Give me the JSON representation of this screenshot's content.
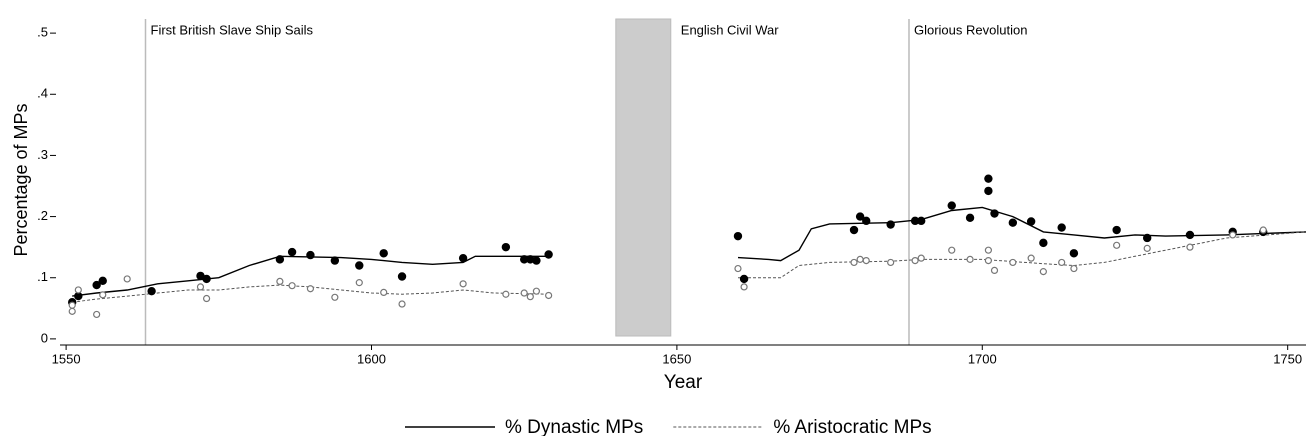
{
  "chart_data": {
    "type": "line",
    "x_label": "Year",
    "y_label": "Percentage of MPs",
    "xlim": [
      1549,
      1753
    ],
    "ylim": [
      -0.01,
      0.51
    ],
    "xticks": [
      1550,
      1600,
      1650,
      1700,
      1750
    ],
    "yticks": [
      0,
      {
        "value": 0.1,
        "label": ".1"
      },
      {
        "value": 0.2,
        "label": ".2"
      },
      {
        "value": 0.3,
        "label": ".3"
      },
      {
        "value": 0.4,
        "label": ".4"
      },
      {
        "value": 0.5,
        "label": ".5"
      }
    ],
    "annotations": [
      {
        "type": "vline",
        "x": 1563,
        "text": "First British Slave Ship Sails"
      },
      {
        "type": "span",
        "x": [
          1640,
          1649
        ],
        "text": "English Civil War",
        "color": "#cccccc"
      },
      {
        "type": "vline",
        "x": 1688,
        "text": "Glorious Revolution"
      }
    ],
    "legend": "bottom",
    "series": [
      {
        "name": "% Dynastic MPs",
        "color": "#000000",
        "dash": "solid",
        "x": [
          1551,
          1555,
          1560,
          1565,
          1570,
          1575,
          1580,
          1585,
          1590,
          1595,
          1600,
          1605,
          1610,
          1615,
          1617,
          1620,
          1629,
          null,
          1660,
          1665,
          1667,
          1670,
          1672,
          1675,
          1685,
          1690,
          1695,
          1700,
          1705,
          1710,
          1715,
          1720,
          1725,
          1730,
          1740,
          1753
        ],
        "values": [
          0.07,
          0.075,
          0.08,
          0.09,
          0.095,
          0.1,
          0.12,
          0.135,
          0.134,
          0.133,
          0.13,
          0.125,
          0.122,
          0.125,
          0.135,
          0.135,
          0.135,
          null,
          0.133,
          0.13,
          0.128,
          0.145,
          0.18,
          0.188,
          0.19,
          0.195,
          0.21,
          0.215,
          0.2,
          0.175,
          0.17,
          0.165,
          0.17,
          0.168,
          0.17,
          0.175
        ]
      },
      {
        "name": "% Aristocratic MPs",
        "color": "#555555",
        "dash": "dashed",
        "x": [
          1551,
          1555,
          1560,
          1565,
          1570,
          1575,
          1580,
          1585,
          1590,
          1595,
          1600,
          1605,
          1610,
          1615,
          1620,
          1629,
          null,
          1660,
          1667,
          1670,
          1675,
          1685,
          1690,
          1700,
          1710,
          1715,
          1720,
          1725,
          1730,
          1740,
          1753
        ],
        "values": [
          0.06,
          0.065,
          0.07,
          0.075,
          0.08,
          0.08,
          0.085,
          0.088,
          0.085,
          0.08,
          0.075,
          0.073,
          0.075,
          0.08,
          0.075,
          0.073,
          null,
          0.1,
          0.1,
          0.12,
          0.125,
          0.127,
          0.13,
          0.13,
          0.123,
          0.12,
          0.125,
          0.135,
          0.145,
          0.165,
          0.175
        ]
      }
    ],
    "points": [
      {
        "marker": "filled",
        "color": "#000000",
        "x": [
          1551,
          1552,
          1555,
          1556,
          1564,
          1572,
          1573,
          1585,
          1587,
          1590,
          1594,
          1598,
          1602,
          1605,
          1615,
          1622,
          1625,
          1626,
          1627,
          1629,
          1660,
          1661,
          1679,
          1680,
          1681,
          1685,
          1689,
          1690,
          1695,
          1698,
          1701,
          1701,
          1702,
          1705,
          1708,
          1710,
          1713,
          1715,
          1722,
          1727,
          1734,
          1741,
          1746
        ],
        "values": [
          0.06,
          0.07,
          0.088,
          0.095,
          0.078,
          0.103,
          0.098,
          0.13,
          0.142,
          0.137,
          0.128,
          0.12,
          0.14,
          0.102,
          0.132,
          0.15,
          0.13,
          0.13,
          0.128,
          0.138,
          0.168,
          0.098,
          0.178,
          0.2,
          0.193,
          0.187,
          0.193,
          0.193,
          0.218,
          0.198,
          0.262,
          0.242,
          0.205,
          0.19,
          0.192,
          0.157,
          0.182,
          0.14,
          0.178,
          0.165,
          0.17,
          0.175,
          0.175
        ]
      },
      {
        "marker": "hollow",
        "color": "#777777",
        "x": [
          1551,
          1551,
          1552,
          1555,
          1556,
          1560,
          1572,
          1573,
          1585,
          1587,
          1590,
          1594,
          1598,
          1602,
          1605,
          1615,
          1622,
          1625,
          1626,
          1627,
          1629,
          1660,
          1661,
          1679,
          1680,
          1681,
          1685,
          1689,
          1690,
          1695,
          1698,
          1701,
          1701,
          1702,
          1705,
          1708,
          1710,
          1713,
          1715,
          1722,
          1727,
          1734,
          1741,
          1746
        ],
        "values": [
          0.045,
          0.055,
          0.08,
          0.04,
          0.072,
          0.098,
          0.085,
          0.066,
          0.094,
          0.087,
          0.082,
          0.068,
          0.092,
          0.076,
          0.057,
          0.09,
          0.073,
          0.075,
          0.069,
          0.078,
          0.071,
          0.115,
          0.085,
          0.125,
          0.13,
          0.128,
          0.125,
          0.128,
          0.132,
          0.145,
          0.13,
          0.145,
          0.128,
          0.112,
          0.125,
          0.132,
          0.11,
          0.125,
          0.115,
          0.153,
          0.148,
          0.15,
          0.17,
          0.178
        ]
      }
    ]
  }
}
